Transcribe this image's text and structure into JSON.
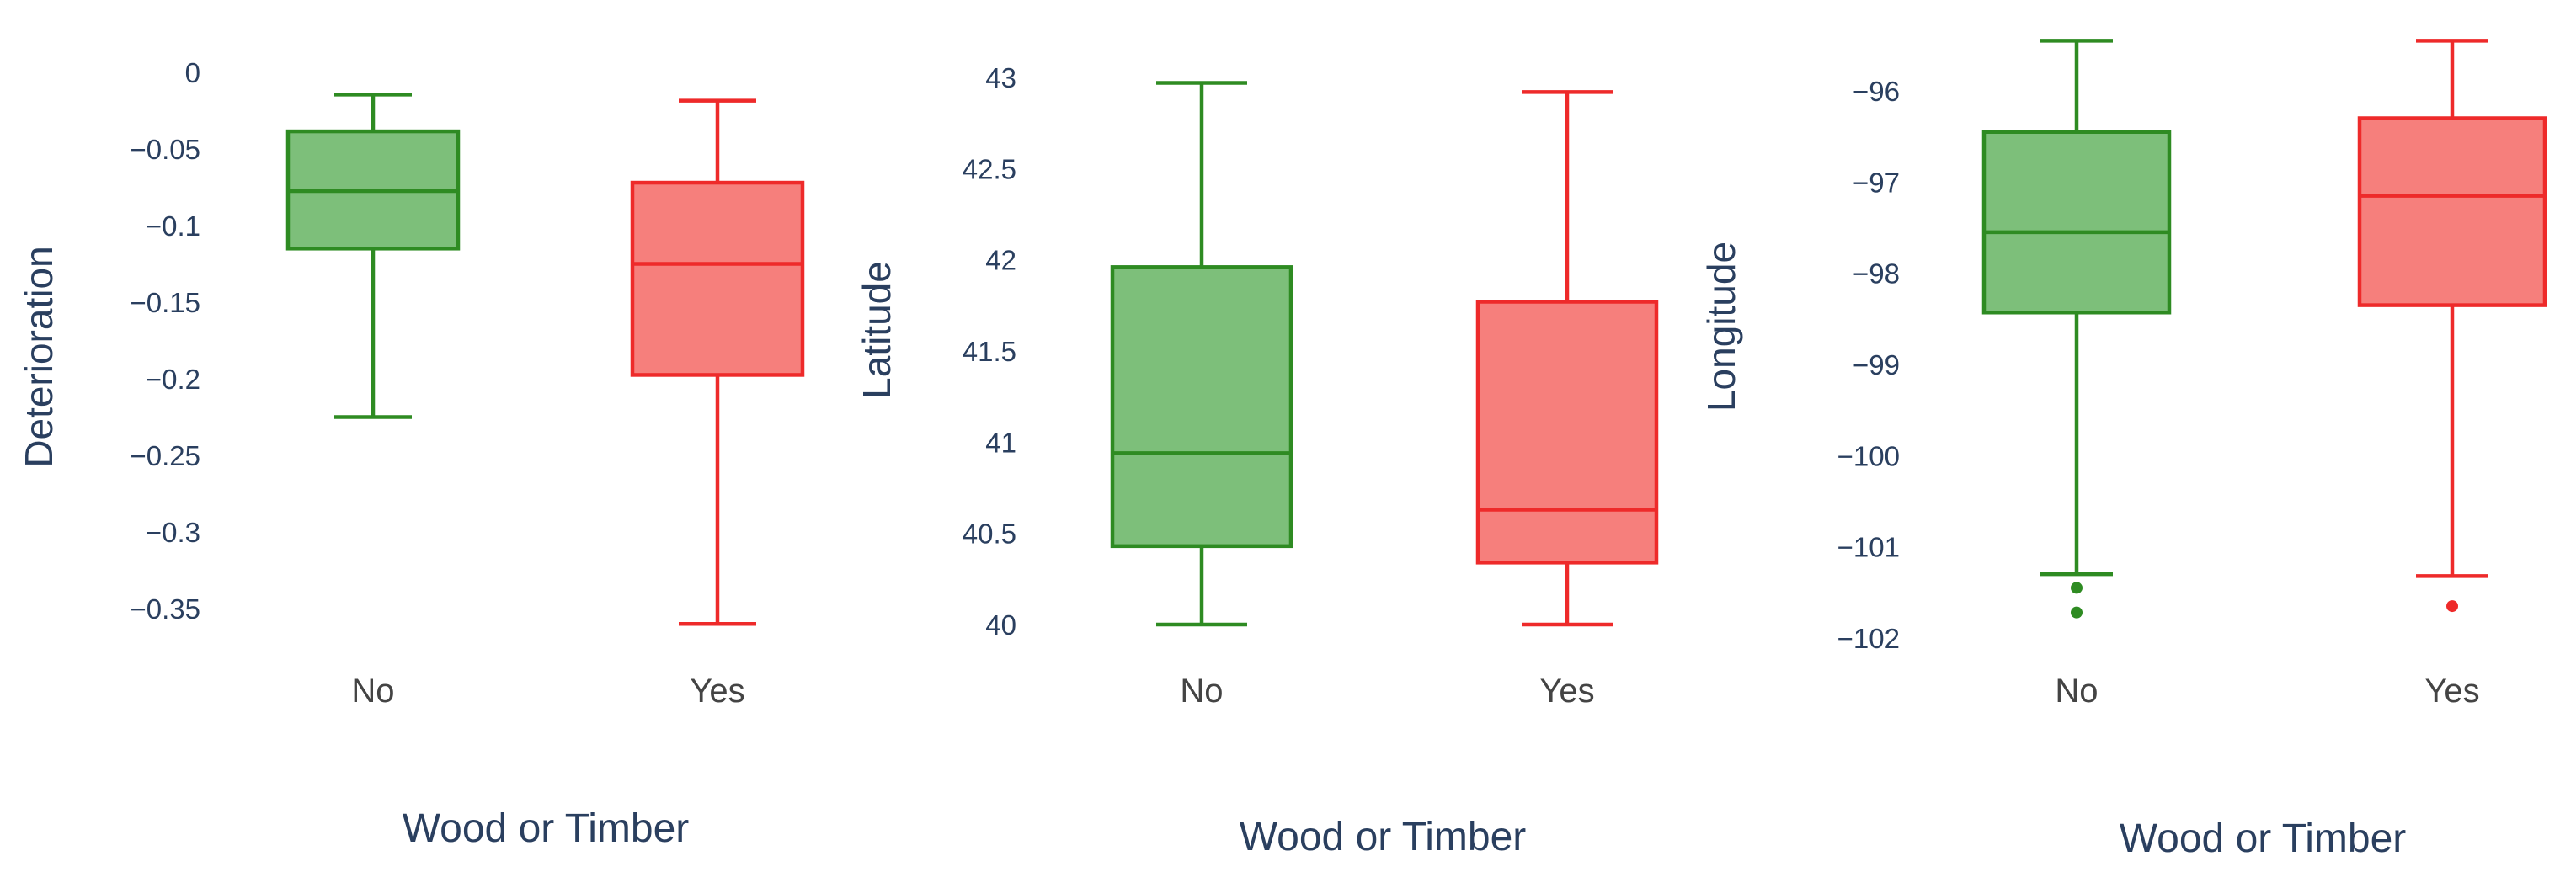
{
  "chart_data": [
    {
      "type": "box",
      "xlabel": "Wood or Timber",
      "ylabel": "Deterioration",
      "categories": [
        "No",
        "Yes"
      ],
      "ylim": [
        -0.35,
        0
      ],
      "yticks": [
        0,
        -0.05,
        -0.1,
        -0.15,
        -0.2,
        -0.25,
        -0.3,
        -0.35
      ],
      "ytick_labels": [
        "0",
        "−0.05",
        "−0.1",
        "−0.15",
        "−0.2",
        "−0.25",
        "−0.3",
        "−0.35"
      ],
      "grid": false,
      "series": [
        {
          "category": "No",
          "color": "#2e8b22",
          "fill": "#7dbf7a",
          "lower_fence": -0.225,
          "q1": -0.115,
          "median": -0.0775,
          "q3": -0.0385,
          "upper_fence": -0.0145,
          "outliers": []
        },
        {
          "category": "Yes",
          "color": "#ee2a2a",
          "fill": "#f67f7c",
          "lower_fence": -0.36,
          "q1": -0.1975,
          "median": -0.125,
          "q3": -0.072,
          "upper_fence": -0.0185,
          "outliers": []
        }
      ]
    },
    {
      "type": "box",
      "xlabel": "Wood or Timber",
      "ylabel": "Latitude",
      "categories": [
        "No",
        "Yes"
      ],
      "ylim": [
        40,
        43
      ],
      "yticks": [
        43,
        42.5,
        42,
        41.5,
        41,
        40.5,
        40
      ],
      "ytick_labels": [
        "43",
        "42.5",
        "42",
        "41.5",
        "41",
        "40.5",
        "40"
      ],
      "grid": false,
      "series": [
        {
          "category": "No",
          "color": "#2e8b22",
          "fill": "#7dbf7a",
          "lower_fence": 40.0,
          "q1": 40.43,
          "median": 40.94,
          "q3": 41.96,
          "upper_fence": 42.97,
          "outliers": []
        },
        {
          "category": "Yes",
          "color": "#ee2a2a",
          "fill": "#f67f7c",
          "lower_fence": 40.0,
          "q1": 40.34,
          "median": 40.63,
          "q3": 41.77,
          "upper_fence": 42.92,
          "outliers": []
        }
      ]
    },
    {
      "type": "box",
      "xlabel": "Wood or Timber",
      "ylabel": "Longitude",
      "categories": [
        "No",
        "Yes"
      ],
      "ylim": [
        -102,
        -96
      ],
      "yticks": [
        -96,
        -97,
        -98,
        -99,
        -100,
        -101,
        -102
      ],
      "ytick_labels": [
        "−96",
        "−97",
        "−98",
        "−99",
        "−100",
        "−101",
        "−102"
      ],
      "grid": false,
      "series": [
        {
          "category": "No",
          "color": "#2e8b22",
          "fill": "#7dbf7a",
          "lower_fence": -101.3,
          "q1": -98.43,
          "median": -97.55,
          "q3": -96.45,
          "upper_fence": -95.45,
          "outliers": [
            -101.45,
            -101.72
          ]
        },
        {
          "category": "Yes",
          "color": "#ee2a2a",
          "fill": "#f67f7c",
          "lower_fence": -101.32,
          "q1": -98.35,
          "median": -97.15,
          "q3": -96.3,
          "upper_fence": -95.45,
          "outliers": [
            -101.65
          ]
        }
      ]
    }
  ]
}
